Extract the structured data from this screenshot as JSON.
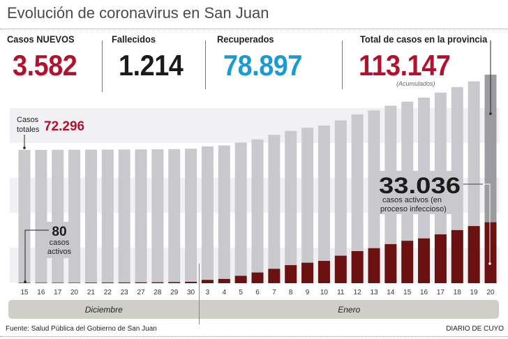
{
  "title": "Evolución de coronavirus en San Juan",
  "stats": [
    {
      "label": "Casos NUEVOS",
      "value": "3.582",
      "color": "#b3112e"
    },
    {
      "label": "Fallecidos",
      "value": "1.214",
      "color": "#1c1a1a"
    },
    {
      "label": "Recuperados",
      "value": "78.897",
      "color": "#1b9ad6"
    },
    {
      "label": "Total de casos en la provincia",
      "value": "113.147",
      "color": "#b3112e",
      "note": "(Acumulados)"
    }
  ],
  "annotations": {
    "total_label": "Casos totales",
    "total_value": "72.296",
    "start_active_value": "80",
    "start_active_label": "casos activos",
    "end_active_value": "33.036",
    "end_active_label_1": "casos activos (en",
    "end_active_label_2": "proceso infeccioso)"
  },
  "chart_data": {
    "type": "bar",
    "stacked": "overlay",
    "categories": [
      "15",
      "16",
      "17",
      "20",
      "21",
      "22",
      "23",
      "27",
      "28",
      "29",
      "30",
      "3",
      "4",
      "5",
      "6",
      "7",
      "8",
      "9",
      "10",
      "11",
      "12",
      "13",
      "14",
      "15",
      "16",
      "17",
      "18",
      "19",
      "20"
    ],
    "months": [
      {
        "label": "Diciembre",
        "days": 11
      },
      {
        "label": "Enero",
        "days": 18
      }
    ],
    "series": [
      {
        "name": "Casos totales",
        "color": "#c9c9cd",
        "values": [
          72296,
          72300,
          72350,
          72400,
          72450,
          72500,
          72550,
          72600,
          72650,
          72750,
          72940,
          74200,
          74700,
          76300,
          78000,
          80500,
          82600,
          84300,
          85500,
          88300,
          91600,
          93700,
          96300,
          98500,
          100700,
          103400,
          106400,
          109500,
          113147
        ]
      },
      {
        "name": "casos activos",
        "color": "#6b1111",
        "values": [
          80,
          100,
          150,
          200,
          300,
          350,
          400,
          450,
          500,
          600,
          750,
          1800,
          2300,
          4000,
          5800,
          7800,
          9800,
          11100,
          12100,
          14900,
          17400,
          19000,
          21200,
          23000,
          24300,
          26500,
          28800,
          31000,
          33036
        ]
      }
    ],
    "ylim": [
      0,
      113147
    ],
    "grid": false
  },
  "footer": {
    "source": "Fuente: Salud Pública del Gobierno de San Juan",
    "brand": "DIARIO DE CUYO"
  }
}
